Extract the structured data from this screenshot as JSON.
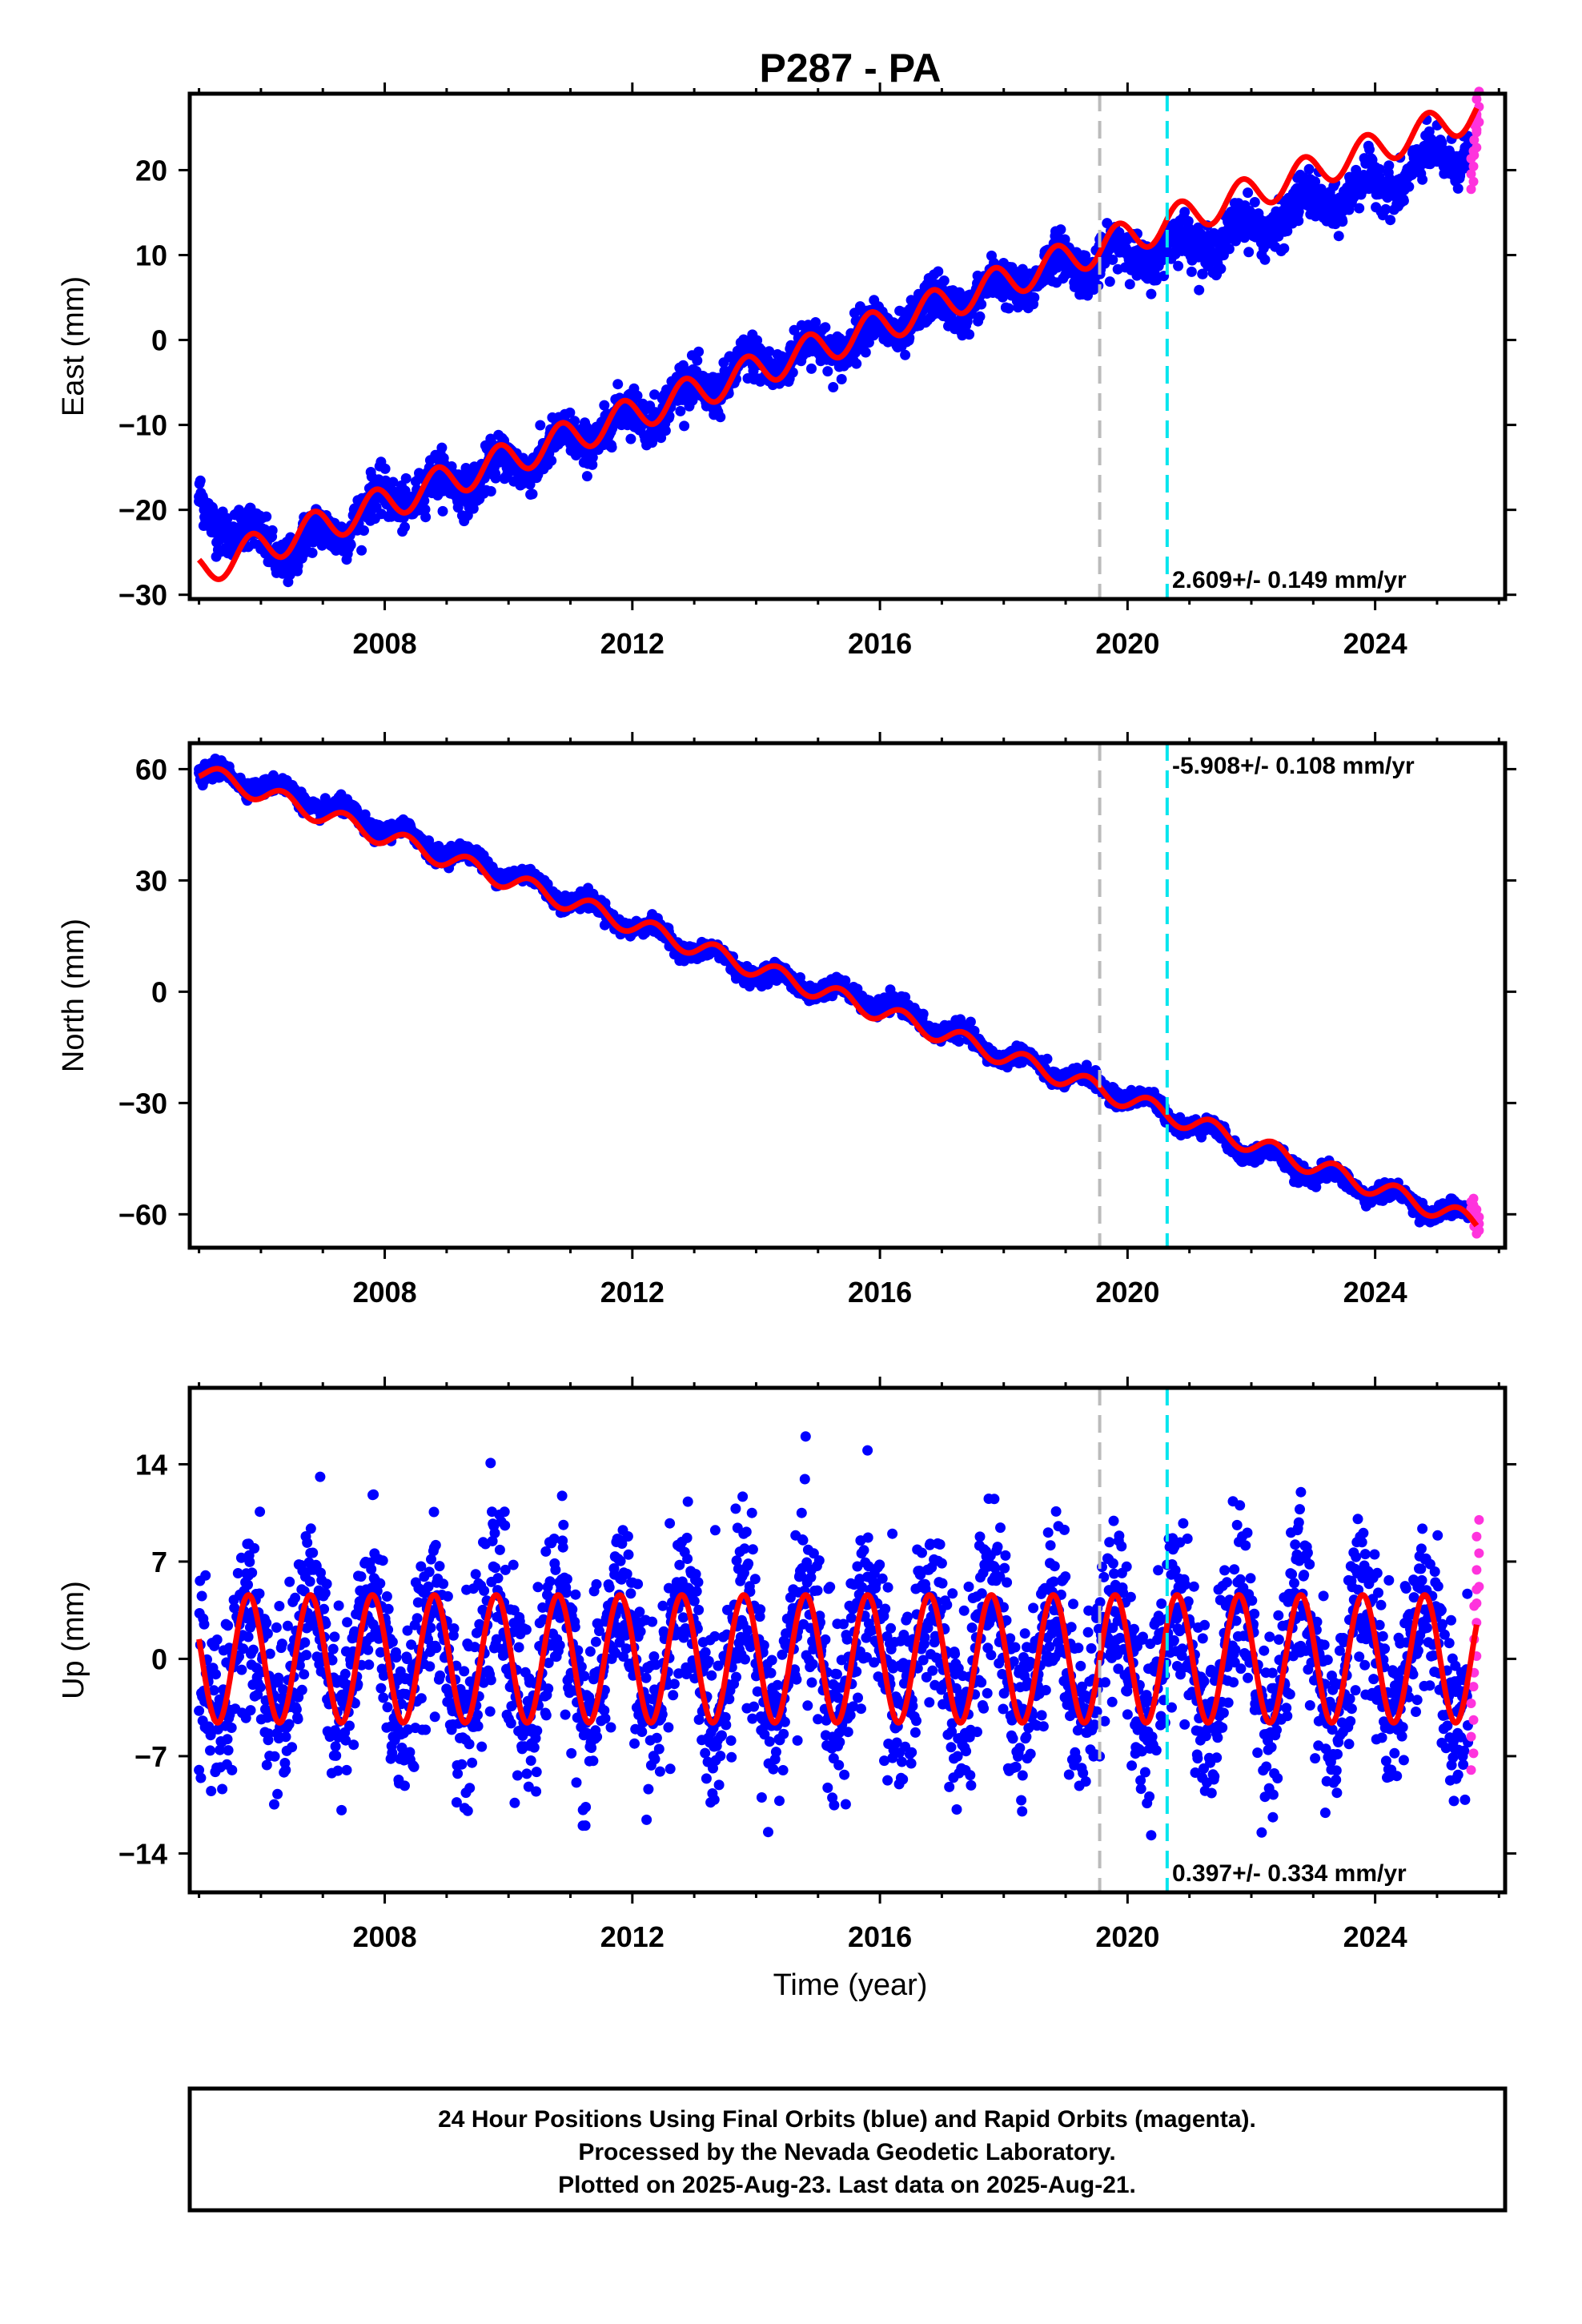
{
  "title": "P287 - PA",
  "footer": {
    "lines": [
      "24 Hour Positions Using Final Orbits (blue) and Rapid Orbits (magenta).",
      "Processed by the Nevada Geodetic Laboratory.",
      "Plotted on 2025-Aug-23. Last data on 2025-Aug-21."
    ]
  },
  "colors": {
    "final_orbits": "#0000ff",
    "rapid_orbits": "#ff33dd",
    "model": "#ff0000",
    "event_gray": "#bbbbbb",
    "event_cyan": "#00e5ee"
  },
  "chart_data": [
    {
      "type": "scatter",
      "panel": "east",
      "ylabel": "East (mm)",
      "xlim": [
        2004.85,
        2026.1
      ],
      "ylim": [
        -30.5,
        29
      ],
      "xticks": [
        2008,
        2012,
        2016,
        2020,
        2024
      ],
      "xtick_labels": [
        "2008",
        "2012",
        "2016",
        "2020",
        "2024"
      ],
      "yticks": [
        -30,
        -20,
        -10,
        0,
        10,
        20
      ],
      "ytick_labels": [
        "−30",
        "−20",
        "−10",
        "0",
        "10",
        "20"
      ],
      "rate_label": "2.609+/- 0.149 mm/yr",
      "rate_label_position": "bottom-right",
      "vertical_lines": [
        {
          "x": 2019.55,
          "color": "gray",
          "style": "dashed"
        },
        {
          "x": 2020.64,
          "color": "cyan",
          "style": "dashed"
        }
      ],
      "series": [
        {
          "role": "final_orbits",
          "x": [
            2005.0,
            2005.5,
            2006.0,
            2006.5,
            2007.0,
            2008.0,
            2009.0,
            2010.0,
            2011.0,
            2012.0,
            2013.0,
            2014.0,
            2015.0,
            2016.0,
            2017.0,
            2018.0,
            2019.0,
            2020.0,
            2021.0,
            2022.0,
            2023.0,
            2024.0,
            2025.0,
            2025.5
          ],
          "y": [
            -19,
            -22,
            -24,
            -25,
            -23,
            -19,
            -17,
            -15,
            -12,
            -9,
            -6,
            -3,
            -1,
            1,
            4,
            6,
            9,
            10,
            11,
            13,
            16,
            18,
            21,
            23
          ]
        },
        {
          "role": "rapid_orbits",
          "x": [
            2025.55,
            2025.6,
            2025.64
          ],
          "y": [
            20,
            24,
            27
          ]
        },
        {
          "role": "model",
          "trend": -27.05,
          "rate": 2.609,
          "annual_amplitude": 2.0,
          "annual_phase_peak": 0.85,
          "x_range": [
            2005.0,
            2025.64
          ]
        }
      ]
    },
    {
      "type": "scatter",
      "panel": "north",
      "ylabel": "North (mm)",
      "xlim": [
        2004.85,
        2026.1
      ],
      "ylim": [
        -69,
        67
      ],
      "xticks": [
        2008,
        2012,
        2016,
        2020,
        2024
      ],
      "xtick_labels": [
        "2008",
        "2012",
        "2016",
        "2020",
        "2024"
      ],
      "yticks": [
        -60,
        -30,
        0,
        30,
        60
      ],
      "ytick_labels": [
        "−60",
        "−30",
        "0",
        "30",
        "60"
      ],
      "rate_label": "-5.908+/- 0.108 mm/yr",
      "rate_label_position": "top-right",
      "vertical_lines": [
        {
          "x": 2019.55,
          "color": "gray",
          "style": "dashed"
        },
        {
          "x": 2020.64,
          "color": "cyan",
          "style": "dashed"
        }
      ],
      "series": [
        {
          "role": "final_orbits",
          "x": [
            2005.0,
            2006.0,
            2008.0,
            2010.0,
            2012.0,
            2014.0,
            2016.0,
            2018.0,
            2020.0,
            2022.0,
            2024.0,
            2025.5
          ],
          "y": [
            59,
            56,
            44,
            32,
            18,
            5,
            -3,
            -17,
            -28,
            -43,
            -54,
            -61
          ]
        },
        {
          "role": "rapid_orbits",
          "x": [
            2025.55,
            2025.6,
            2025.64
          ],
          "y": [
            -58,
            -61,
            -63
          ]
        },
        {
          "role": "model",
          "trend": 59.5,
          "rate": -5.908,
          "annual_amplitude": 2.5,
          "annual_phase_peak": 0.35,
          "x_range": [
            2005.0,
            2025.64
          ]
        }
      ]
    },
    {
      "type": "scatter",
      "panel": "up",
      "ylabel": "Up (mm)",
      "xlabel": "Time (year)",
      "xlim": [
        2004.85,
        2026.1
      ],
      "ylim": [
        -16.8,
        19.5
      ],
      "xticks": [
        2008,
        2012,
        2016,
        2020,
        2024
      ],
      "xtick_labels": [
        "2008",
        "2012",
        "2016",
        "2020",
        "2024"
      ],
      "yticks": [
        -14,
        -7,
        0,
        7,
        14
      ],
      "ytick_labels": [
        "−14",
        "−7",
        "0",
        "7",
        "14"
      ],
      "rate_label": "0.397+/- 0.334 mm/yr",
      "rate_label_position": "bottom-right",
      "vertical_lines": [
        {
          "x": 2019.55,
          "color": "gray",
          "style": "dashed"
        },
        {
          "x": 2020.64,
          "color": "cyan",
          "style": "dashed"
        }
      ],
      "series": [
        {
          "role": "final_orbits",
          "x": [
            2005.0,
            2005.8,
            2006.4,
            2008.8,
            2011.2,
            2014.8,
            2015.8,
            2016.2,
            2020.0,
            2022.8,
            2025.5
          ],
          "y": [
            -8,
            6,
            -8,
            8,
            -12,
            16,
            15,
            9,
            -4,
            12,
            -6
          ]
        },
        {
          "role": "rapid_orbits",
          "x": [
            2025.55,
            2025.6,
            2025.64
          ],
          "y": [
            -5,
            2,
            7
          ]
        },
        {
          "role": "model",
          "annual_amplitude": 4.6,
          "annual_phase_peak": 0.8,
          "x_range": [
            2005.0,
            2025.64
          ]
        }
      ]
    }
  ]
}
